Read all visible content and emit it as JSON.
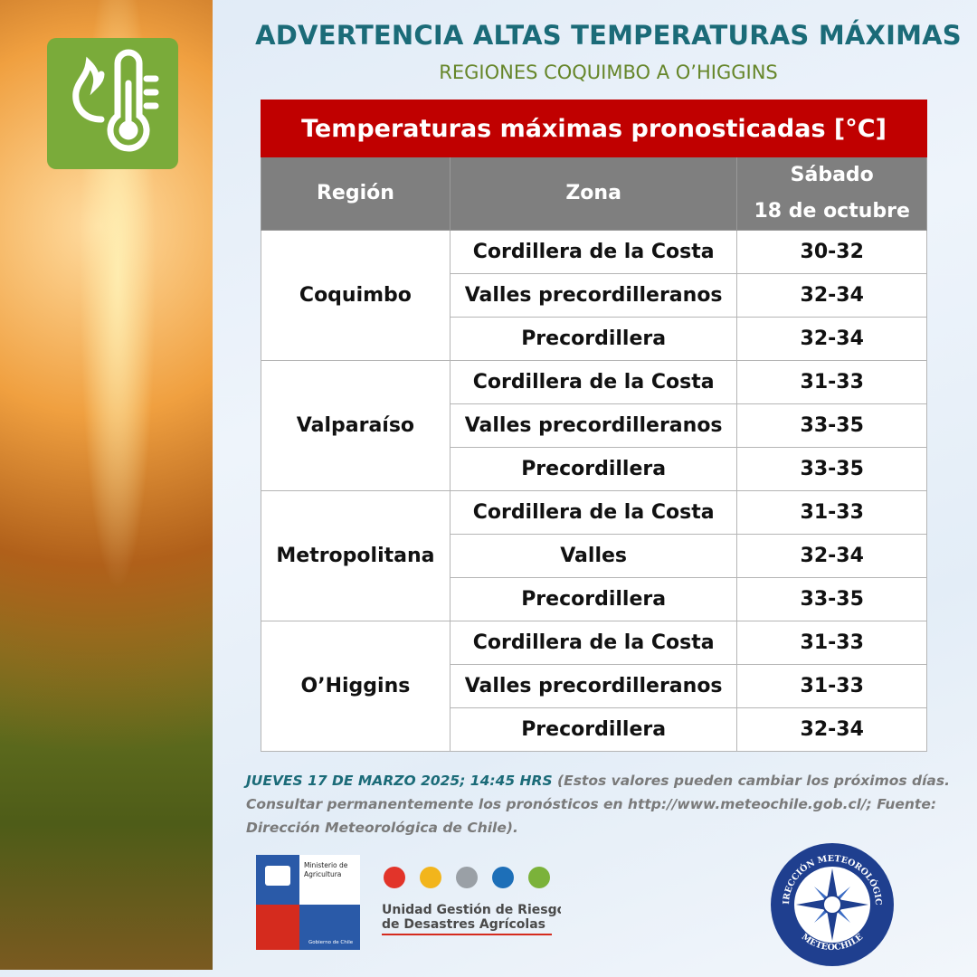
{
  "header": {
    "title": "ADVERTENCIA ALTAS TEMPERATURAS MÁXIMAS",
    "subtitle": "REGIONES COQUIMBO A O’HIGGINS"
  },
  "table": {
    "caption": "Temperaturas máximas pronosticadas [°C]",
    "columns": {
      "region": "Región",
      "zona": "Zona",
      "day": "Sábado",
      "date": "18 de octubre"
    },
    "groups": [
      {
        "region": "Coquimbo",
        "rows": [
          [
            "Cordillera de la Costa",
            "30-32"
          ],
          [
            "Valles precordilleranos",
            "32-34"
          ],
          [
            "Precordillera",
            "32-34"
          ]
        ]
      },
      {
        "region": "Valparaíso",
        "rows": [
          [
            "Cordillera de la Costa",
            "31-33"
          ],
          [
            "Valles precordilleranos",
            "33-35"
          ],
          [
            "Precordillera",
            "33-35"
          ]
        ]
      },
      {
        "region": "Metropolitana",
        "rows": [
          [
            "Cordillera de la Costa",
            "31-33"
          ],
          [
            "Valles",
            "32-34"
          ],
          [
            "Precordillera",
            "33-35"
          ]
        ]
      },
      {
        "region": "O’Higgins",
        "rows": [
          [
            "Cordillera de la Costa",
            "31-33"
          ],
          [
            "Valles precordilleranos",
            "31-33"
          ],
          [
            "Precordillera",
            "32-34"
          ]
        ]
      }
    ]
  },
  "footer": {
    "date": "JUEVES 17 DE MARZO 2025; 14:45 HRS",
    "note": "(Estos valores pueden cambiar los próximos días. Consultar permanentemente los pronósticos en http://www.meteochile.gob.cl/; Fuente: Dirección Meteorológica de Chile)."
  },
  "logos": {
    "ministry": [
      "Ministerio de",
      "Agricultura"
    ],
    "government": "Gobierno de Chile",
    "unit": [
      "Unidad Gestión de Riesgo",
      "de Desastres Agrícolas"
    ],
    "meteo_top": "DIRECCIÓN METEOROLÓGICA",
    "meteo_bottom": "METEOCHILE"
  }
}
